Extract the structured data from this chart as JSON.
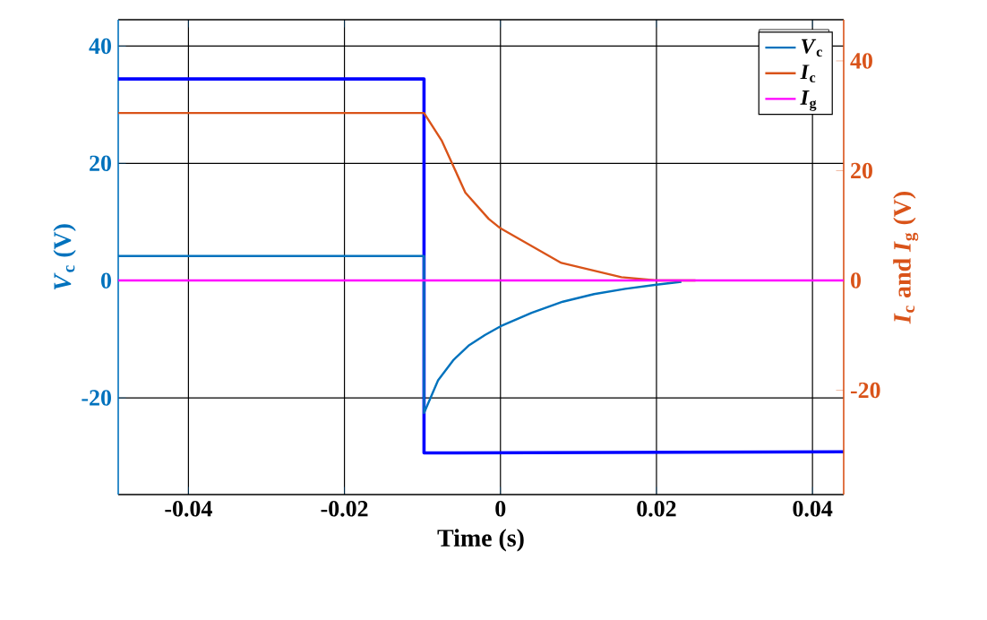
{
  "chart_data": {
    "type": "line",
    "xlabel": "Time (s)",
    "ylabel": "*V*$_{c}$ (V)",
    "y2label": "*I*$_{c}$ and *I*$_{g}$ (V)",
    "xlim": [
      -0.049,
      0.044
    ],
    "xticks": [
      -0.04,
      -0.02,
      0,
      0.02,
      0.04
    ],
    "ylim": [
      -36.5,
      44.5
    ],
    "yticks": [
      -20,
      0,
      20,
      40
    ],
    "y2lim": [
      -39,
      47.5
    ],
    "y2ticks": [
      -20,
      0,
      20,
      40
    ],
    "grid": true,
    "legend": "top right",
    "marker": "none",
    "series": [
      {
        "color": "#0000FF",
        "x": [
          -0.049,
          -0.0098,
          -0.0098,
          0.044
        ],
        "values": [
          34.4,
          34.4,
          -29.4,
          -29.2
        ]
      },
      {
        "name": "*V*$_{c}$",
        "color": "#0072BD",
        "x": [
          -0.049,
          -0.0098,
          -0.0098,
          -0.008,
          -0.006,
          -0.004,
          -0.002,
          0,
          0.004,
          0.008,
          0.012,
          0.016,
          0.02,
          0.0232
        ],
        "values": [
          4.2,
          4.2,
          -22.6,
          -17,
          -13.5,
          -11,
          -9.3,
          -7.8,
          -5.5,
          -3.6,
          -2.3,
          -1.4,
          -0.7,
          -0.2
        ]
      },
      {
        "name": "*I*$_{c}$",
        "color": "#D95319",
        "axis": "y2",
        "x": [
          -0.049,
          -0.0098,
          -0.0075,
          -0.0045,
          -0.0015,
          0,
          0.0078,
          0.0155,
          0.02,
          0.025
        ],
        "values": [
          30.5,
          30.5,
          25.4,
          16,
          11.2,
          9.5,
          3.2,
          0.6,
          0,
          0
        ]
      },
      {
        "name": "*I*$_{g}$",
        "color": "#FF00FF",
        "axis": "y2",
        "x": [
          -0.049,
          0.044
        ],
        "values": [
          0,
          0
        ]
      }
    ]
  }
}
